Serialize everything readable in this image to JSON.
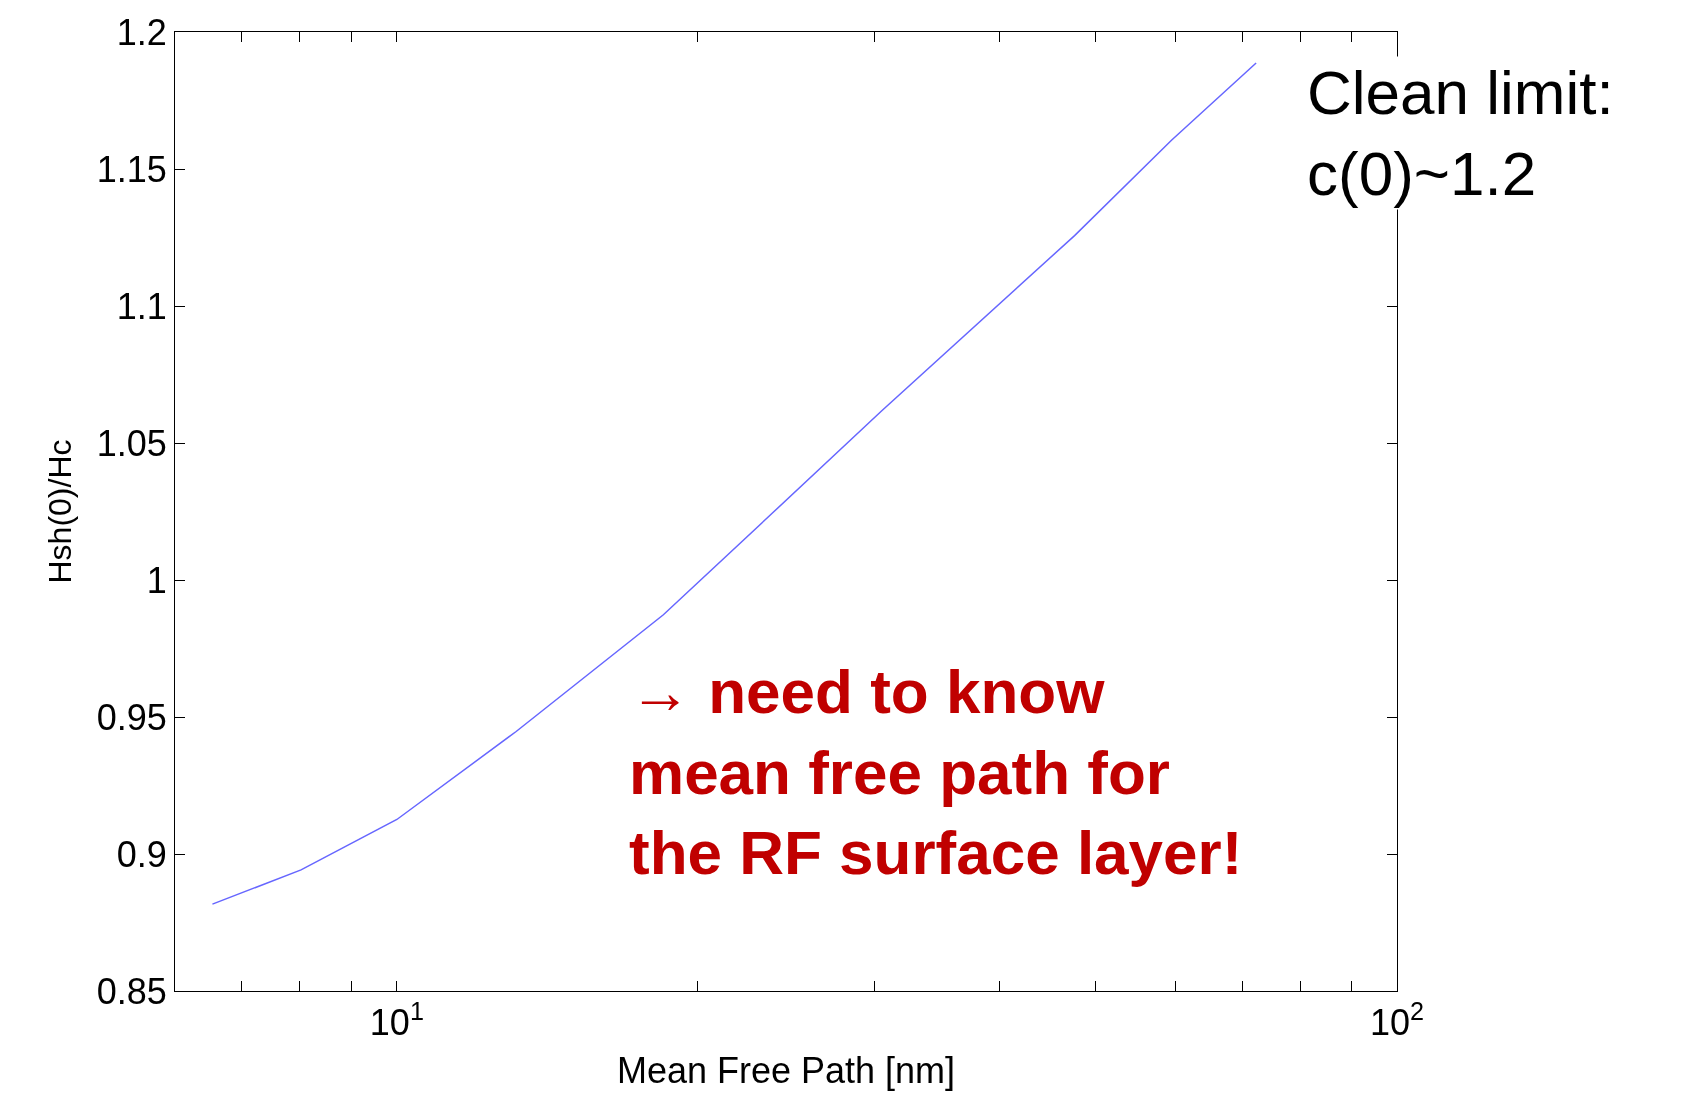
{
  "chart_data": {
    "type": "line",
    "xlabel": "Mean Free Path [nm]",
    "ylabel": "Hsh(0)/Hc",
    "x": [
      6.54,
      8.02,
      10,
      13.16,
      18.47,
      23.8,
      30.5,
      47.6,
      59.5,
      72.3
    ],
    "series": [
      {
        "color": "#6666ff",
        "values": [
          0.8817,
          0.8942,
          0.9126,
          0.9447,
          0.9873,
          1.0248,
          1.0616,
          1.1257,
          1.1605,
          1.1887
        ]
      }
    ],
    "log": "x",
    "xlim": [
      6,
      100
    ],
    "ylim": [
      0.85,
      1.2
    ],
    "xticks": [
      {
        "value": 6,
        "label": null
      },
      {
        "value": 7,
        "label": null
      },
      {
        "value": 8,
        "label": null
      },
      {
        "value": 9,
        "label": null
      },
      {
        "value": 10,
        "label": "10$^{1}$"
      },
      {
        "value": 20,
        "label": null
      },
      {
        "value": 30,
        "label": null
      },
      {
        "value": 40,
        "label": null
      },
      {
        "value": 50,
        "label": null
      },
      {
        "value": 60,
        "label": null
      },
      {
        "value": 70,
        "label": null
      },
      {
        "value": 80,
        "label": null
      },
      {
        "value": 90,
        "label": null
      },
      {
        "value": 100,
        "label": "10$^{2}$"
      }
    ],
    "yticks": [
      0.85,
      0.9,
      0.95,
      1,
      1.05,
      1.1,
      1.15,
      1.2
    ],
    "legend": false,
    "annotations": [
      "Clean limit:\nc(0)~1.2",
      "→ need to know\nmean free path for\nthe RF surface layer!"
    ]
  }
}
